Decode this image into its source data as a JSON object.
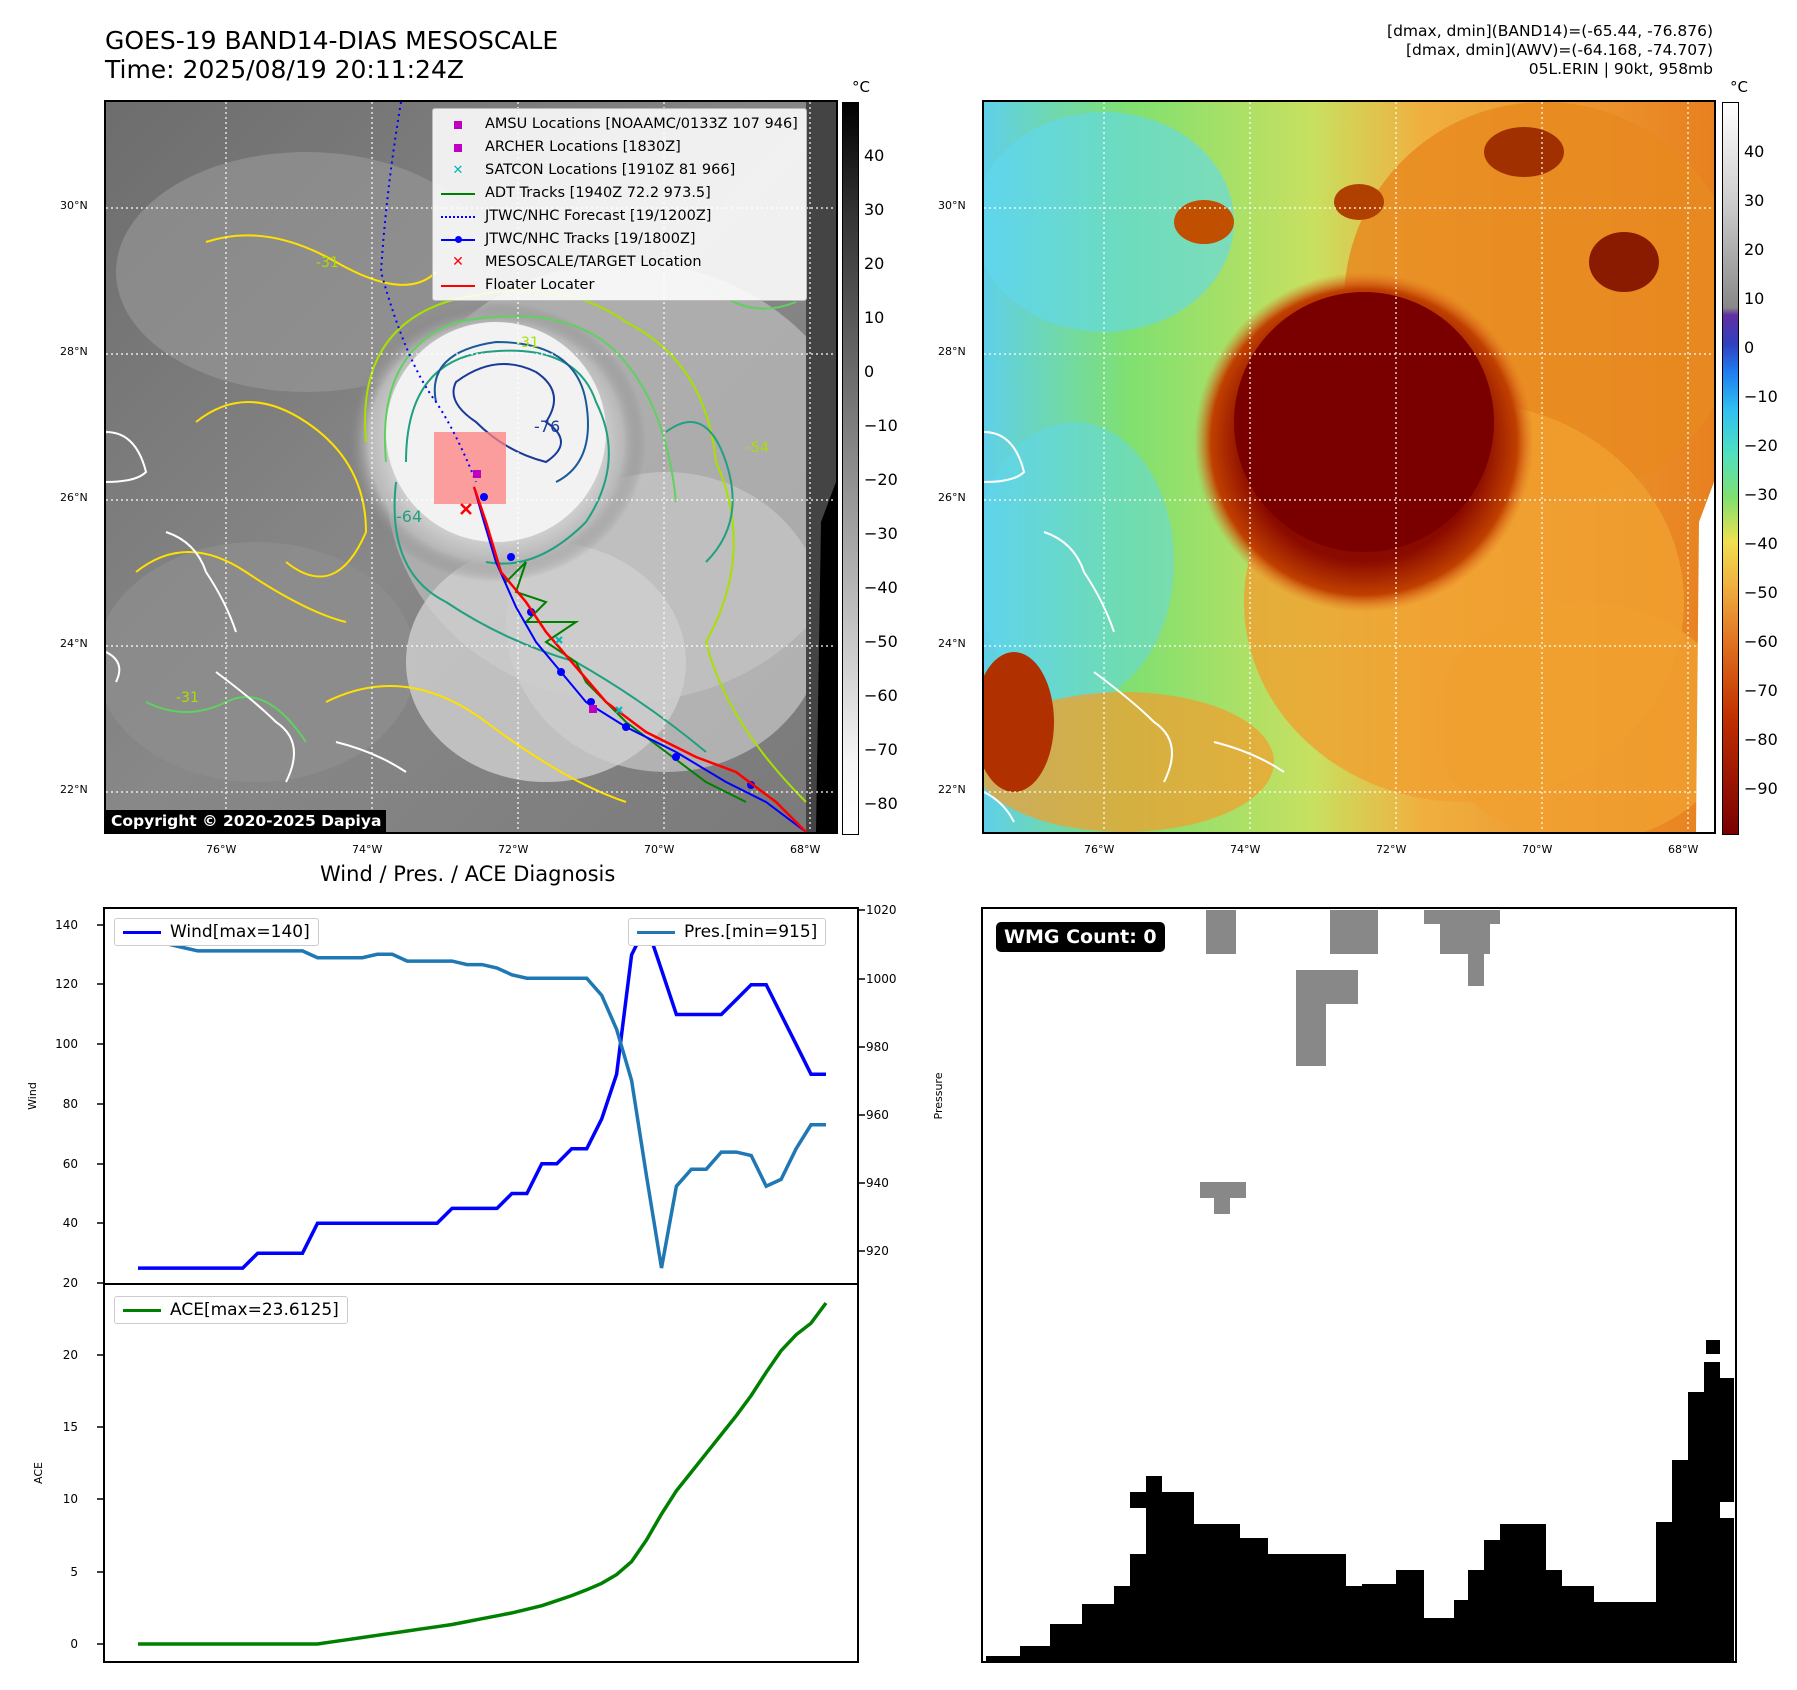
{
  "header": {
    "title_line1": "GOES-19 BAND14-DIAS MESOSCALE",
    "title_line2": "Time: 2025/08/19 20:11:24Z",
    "info_line1": "[dmax, dmin](BAND14)=(-65.44, -76.876)",
    "info_line2": "[dmax, dmin](AWV)=(-64.168, -74.707)",
    "info_line3": "05L.ERIN | 90kt, 958mb"
  },
  "map": {
    "unit": "°C",
    "lat_labels": [
      "30°N",
      "28°N",
      "26°N",
      "24°N",
      "22°N"
    ],
    "lon_labels": [
      "76°W",
      "74°W",
      "72°W",
      "70°W",
      "68°W"
    ],
    "left_colorbar_ticks": [
      "40",
      "30",
      "20",
      "10",
      "0",
      "−10",
      "−20",
      "−30",
      "−40",
      "−50",
      "−60",
      "−70",
      "−80"
    ],
    "right_colorbar_ticks": [
      "40",
      "30",
      "20",
      "10",
      "0",
      "−10",
      "−20",
      "−30",
      "−40",
      "−50",
      "−60",
      "−70",
      "−80",
      "−90"
    ],
    "copyright": "Copyright © 2020-2025 Dapiya",
    "legend": [
      {
        "label": "AMSU Locations [NOAAMC/0133Z 107 946]",
        "color": "#c000c0",
        "symbol": "square"
      },
      {
        "label": "ARCHER Locations [1830Z]",
        "color": "#c000c0",
        "symbol": "square"
      },
      {
        "label": "SATCON Locations [1910Z 81 966]",
        "color": "#00b8b8",
        "symbol": "cross"
      },
      {
        "label": "ADT Tracks [1940Z 72.2 973.5]",
        "color": "#008000",
        "symbol": "line"
      },
      {
        "label": "JTWC/NHC Forecast [19/1200Z]",
        "color": "#0000ff",
        "symbol": "dotted"
      },
      {
        "label": "JTWC/NHC Tracks [19/1800Z]",
        "color": "#0000ff",
        "symbol": "line-dot"
      },
      {
        "label": "MESOSCALE/TARGET Location",
        "color": "#ff0000",
        "symbol": "x"
      },
      {
        "label": "Floater Locater",
        "color": "#ff0000",
        "symbol": "line"
      }
    ],
    "contour_labels": [
      "-76",
      "-64",
      "-31",
      "-31",
      "-54",
      "-31"
    ]
  },
  "chart_data": [
    {
      "type": "line",
      "title": "Wind / Pres. / ACE Diagnosis",
      "ylabel": "Wind",
      "y2label": "Pressure",
      "ylim": [
        20,
        145
      ],
      "y2lim": [
        912,
        1020
      ],
      "yticks": [
        "140",
        "120",
        "100",
        "80",
        "60",
        "40",
        "20"
      ],
      "y2ticks": [
        "1020",
        "1000",
        "980",
        "960",
        "940",
        "920"
      ],
      "series": [
        {
          "name": "Wind[max=140]",
          "color": "#0000ff",
          "values": [
            25,
            25,
            25,
            25,
            25,
            25,
            25,
            25,
            30,
            30,
            30,
            30,
            40,
            40,
            40,
            40,
            40,
            40,
            40,
            40,
            40,
            45,
            45,
            45,
            45,
            50,
            50,
            60,
            60,
            65,
            65,
            75,
            90,
            130,
            140,
            125,
            110,
            110,
            110,
            110,
            115,
            120,
            120,
            110,
            100,
            90,
            90
          ]
        },
        {
          "name": "Pres.[min=915]",
          "color": "#1f77b4",
          "values": [
            1015,
            1015,
            1010,
            1009,
            1008,
            1008,
            1008,
            1008,
            1008,
            1008,
            1008,
            1008,
            1006,
            1006,
            1006,
            1006,
            1007,
            1007,
            1005,
            1005,
            1005,
            1005,
            1004,
            1004,
            1003,
            1001,
            1000,
            1000,
            1000,
            1000,
            1000,
            995,
            985,
            970,
            942,
            915,
            939,
            944,
            944,
            949,
            949,
            948,
            939,
            941,
            950,
            957,
            957
          ]
        }
      ]
    },
    {
      "type": "line",
      "ylabel": "ACE",
      "ylim": [
        -0.5,
        24
      ],
      "yticks": [
        "20",
        "15",
        "10",
        "5",
        "0"
      ],
      "series": [
        {
          "name": "ACE[max=23.6125]",
          "color": "#008000",
          "values": [
            0,
            0,
            0,
            0,
            0,
            0,
            0,
            0,
            0,
            0,
            0,
            0,
            0,
            0.15,
            0.3,
            0.45,
            0.6,
            0.75,
            0.9,
            1.05,
            1.2,
            1.35,
            1.55,
            1.75,
            1.95,
            2.15,
            2.4,
            2.65,
            3.0,
            3.35,
            3.75,
            4.2,
            4.8,
            5.7,
            7.2,
            9.0,
            10.6,
            11.9,
            13.2,
            14.5,
            15.8,
            17.2,
            18.8,
            20.3,
            21.4,
            22.2,
            23.6
          ]
        }
      ]
    }
  ],
  "wmg": {
    "badge": "WMG Count: 0"
  }
}
